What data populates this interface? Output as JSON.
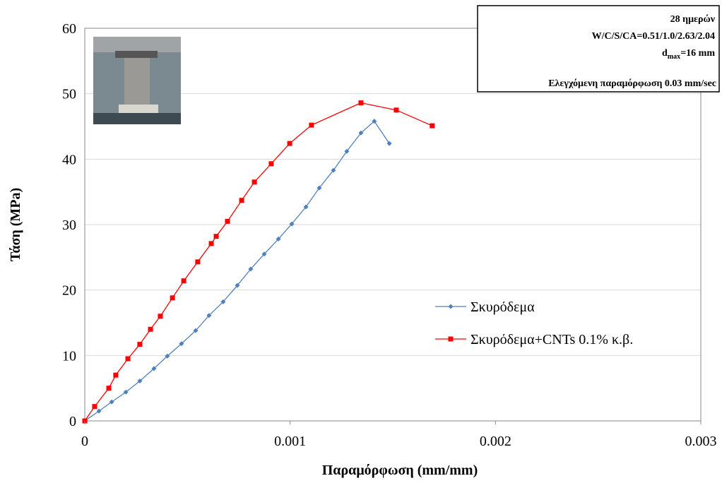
{
  "chart_data": {
    "type": "line",
    "xlabel": "Παραμόρφωση  (mm/mm)",
    "ylabel": "Τάση (MPa)",
    "annotation": {
      "line1": "28 ημερών",
      "line2": "W/C/S/CA=0.51/1.0/2.63/2.04",
      "line3": {
        "base": "d",
        "sub": "max",
        "rest": "=16 mm"
      },
      "line4": "Ελεγχόμενη παραμόρφωση 0.03 mm/sec"
    },
    "xlim": [
      0,
      0.003
    ],
    "xticks": [
      0,
      0.001,
      0.002,
      0.003
    ],
    "ylim": [
      0,
      60
    ],
    "yticks": [
      0,
      10,
      20,
      30,
      40,
      50,
      60
    ],
    "grid": true,
    "legend": "right",
    "series": [
      {
        "name": "Σκυρόδεμα",
        "color": "#4f81bd",
        "marker": "diamond",
        "x": [
          0,
          6.9e-05,
          0.000131,
          0.0002,
          0.000268,
          0.000337,
          0.000402,
          0.000471,
          0.00054,
          0.000605,
          0.000674,
          0.000743,
          0.000808,
          0.000874,
          0.000943,
          0.001008,
          0.001077,
          0.001142,
          0.001211,
          0.001276,
          0.001345,
          0.00141,
          0.001483
        ],
        "values": [
          0,
          1.5,
          2.9,
          4.4,
          6.1,
          8.0,
          9.9,
          11.8,
          13.8,
          16.1,
          18.2,
          20.7,
          23.2,
          25.5,
          27.8,
          30.1,
          32.7,
          35.6,
          38.3,
          41.2,
          44.0,
          45.8,
          42.4
        ]
      },
      {
        "name": "Σκυρόδεμα+CNTs 0.1% κ.β.",
        "color": "#ff0000",
        "marker": "square",
        "x": [
          0,
          4.8e-05,
          0.000117,
          0.000151,
          0.00021,
          0.000268,
          0.00032,
          0.000368,
          0.000427,
          0.000482,
          0.00055,
          0.000616,
          0.00064,
          0.000695,
          0.000764,
          0.000826,
          0.000908,
          0.000998,
          0.001104,
          0.001345,
          0.001517,
          0.001692
        ],
        "values": [
          0,
          2.2,
          5.0,
          7.0,
          9.5,
          11.7,
          14.0,
          16.0,
          18.8,
          21.4,
          24.3,
          27.1,
          28.2,
          30.5,
          33.7,
          36.5,
          39.3,
          42.4,
          45.2,
          48.6,
          47.5,
          45.1
        ]
      }
    ]
  }
}
